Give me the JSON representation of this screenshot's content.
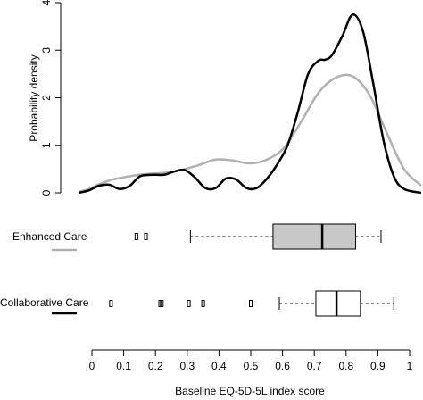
{
  "chart_data": {
    "type": "density",
    "ylabel": "Probability density",
    "xlabel": "Baseline EQ-5D-5L index score",
    "xlim": [
      0,
      1
    ],
    "ylim": [
      0,
      4
    ],
    "x_ticks": [
      "0",
      "0.1",
      "0.2",
      "0.3",
      "0.4",
      "0.5",
      "0.6",
      "0.7",
      "0.8",
      "0.9",
      "1"
    ],
    "y_ticks": [
      "0",
      "1",
      "2",
      "3",
      "4"
    ],
    "series": [
      {
        "name": "Enhanced Care",
        "color": "#b0b0b0",
        "density": {
          "x": [
            0,
            0.03,
            0.06,
            0.1,
            0.15,
            0.2,
            0.25,
            0.3,
            0.35,
            0.4,
            0.45,
            0.5,
            0.55,
            0.6,
            0.65,
            0.7,
            0.75,
            0.8,
            0.85,
            0.9,
            0.95,
            1.0
          ],
          "y": [
            0.02,
            0.08,
            0.18,
            0.28,
            0.35,
            0.4,
            0.42,
            0.48,
            0.58,
            0.7,
            0.68,
            0.62,
            0.7,
            0.95,
            1.5,
            2.1,
            2.42,
            2.45,
            2.05,
            1.25,
            0.5,
            0.15
          ]
        },
        "boxplot": {
          "whisker_low": 0.31,
          "q1": 0.57,
          "median": 0.725,
          "q3": 0.83,
          "whisker_high": 0.91,
          "outliers": [
            0.14,
            0.17
          ]
        }
      },
      {
        "name": "Collaborative Care",
        "color": "#000000",
        "density": {
          "x": [
            0,
            0.03,
            0.06,
            0.09,
            0.12,
            0.15,
            0.18,
            0.22,
            0.25,
            0.28,
            0.31,
            0.34,
            0.37,
            0.4,
            0.43,
            0.46,
            0.49,
            0.52,
            0.55,
            0.58,
            0.61,
            0.64,
            0.67,
            0.7,
            0.72,
            0.74,
            0.77,
            0.8,
            0.83,
            0.86,
            0.89,
            0.92,
            0.95,
            1.0
          ],
          "y": [
            0,
            0.05,
            0.15,
            0.17,
            0.08,
            0.15,
            0.35,
            0.38,
            0.38,
            0.45,
            0.48,
            0.32,
            0.1,
            0.1,
            0.3,
            0.28,
            0.1,
            0.1,
            0.3,
            0.6,
            1.0,
            1.7,
            2.5,
            2.78,
            2.8,
            2.9,
            3.3,
            3.75,
            3.4,
            2.3,
            1.1,
            0.35,
            0.08,
            0
          ]
        },
        "boxplot": {
          "whisker_low": 0.59,
          "q1": 0.705,
          "median": 0.77,
          "q3": 0.845,
          "whisker_high": 0.95,
          "outliers": [
            0.06,
            0.215,
            0.22,
            0.305,
            0.35,
            0.5
          ]
        }
      }
    ],
    "legend_placement": "left, beside box plots",
    "grid": false
  }
}
